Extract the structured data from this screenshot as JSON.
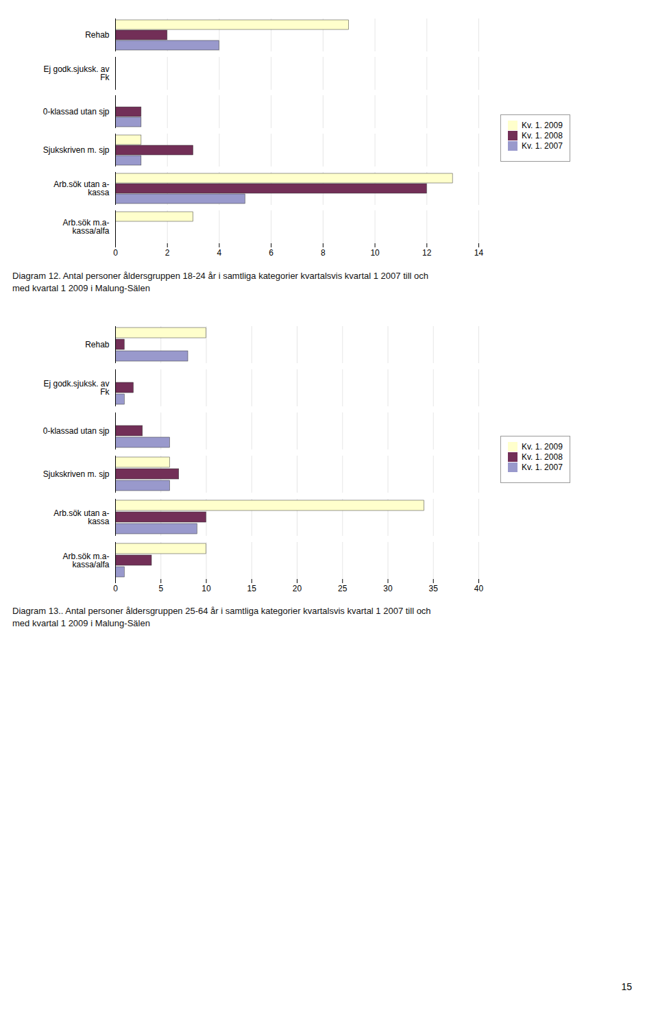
{
  "chart_data": [
    {
      "type": "bar",
      "orientation": "horizontal",
      "categories": [
        "Rehab",
        "Ej godk.sjuksk. av\nFk",
        "0-klassad utan sjp",
        "Sjukskriven m. sjp",
        "Arb.sök utan a-\nkassa",
        "Arb.sök m.a-\nkassa/alfa"
      ],
      "series": [
        {
          "name": "Kv. 1. 2009",
          "color": "#FFFFCC",
          "values": [
            9,
            0,
            0,
            1,
            13,
            3
          ]
        },
        {
          "name": "Kv. 1. 2008",
          "color": "#722F57",
          "values": [
            2,
            0,
            1,
            3,
            12,
            0
          ]
        },
        {
          "name": "Kv. 1. 2007",
          "color": "#9999CC",
          "values": [
            4,
            0,
            1,
            1,
            5,
            0
          ]
        }
      ],
      "xlim": [
        0,
        14
      ],
      "xticks": [
        0,
        2,
        4,
        6,
        8,
        10,
        12,
        14
      ],
      "grid": true,
      "legend": "right",
      "caption": "Diagram 12. Antal personer åldersgruppen 18-24 år i samtliga kategorier kvartalsvis kvartal 1 2007 till och\nmed kvartal 1 2009 i Malung-Sälen"
    },
    {
      "type": "bar",
      "orientation": "horizontal",
      "categories": [
        "Rehab",
        "Ej godk.sjuksk. av\nFk",
        "0-klassad utan sjp",
        "Sjukskriven m. sjp",
        "Arb.sök utan a-\nkassa",
        "Arb.sök m.a-\nkassa/alfa"
      ],
      "series": [
        {
          "name": "Kv. 1. 2009",
          "color": "#FFFFCC",
          "values": [
            10,
            0,
            0,
            6,
            34,
            10
          ]
        },
        {
          "name": "Kv. 1. 2008",
          "color": "#722F57",
          "values": [
            1,
            2,
            3,
            7,
            10,
            4
          ]
        },
        {
          "name": "Kv. 1. 2007",
          "color": "#9999CC",
          "values": [
            8,
            1,
            6,
            6,
            9,
            1
          ]
        }
      ],
      "xlim": [
        0,
        40
      ],
      "xticks": [
        0,
        5,
        10,
        15,
        20,
        25,
        30,
        35,
        40
      ],
      "grid": true,
      "legend": "right",
      "caption": "Diagram 13.. Antal personer åldersgruppen 25-64 år i samtliga kategorier kvartalsvis kvartal 1 2007 till och\nmed kvartal 1 2009 i Malung-Sälen",
      "annotation": "15"
    }
  ]
}
